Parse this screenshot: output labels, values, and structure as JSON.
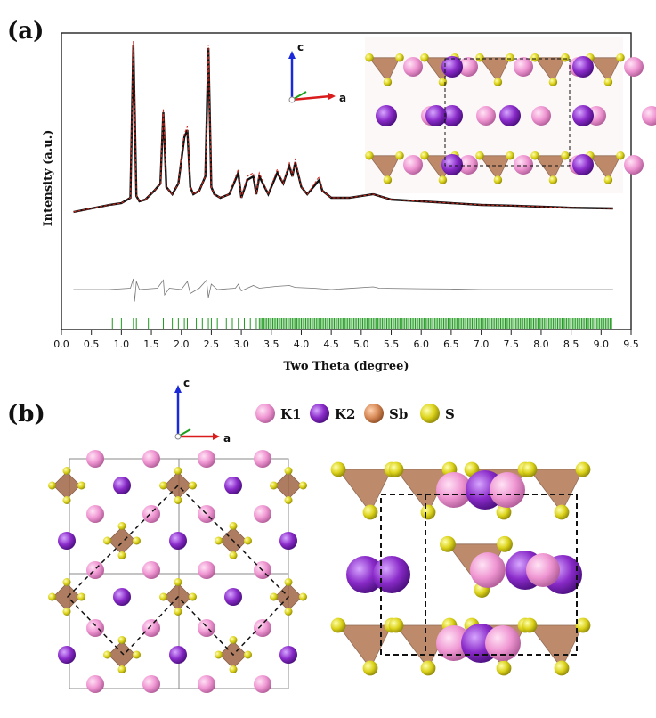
{
  "figure": {
    "panel_a_label": "(a)",
    "panel_b_label": "(b)"
  },
  "chart_data": {
    "type": "line",
    "xlabel": "Two Theta (degree)",
    "ylabel": "Intensity (a.u.)",
    "xlim": [
      0.0,
      9.5
    ],
    "xticks": [
      "0.0",
      "0.5",
      "1.0",
      "1.5",
      "2.0",
      "2.5",
      "3.0",
      "3.5",
      "4.0",
      "4.5",
      "5.0",
      "5.5",
      "6.0",
      "6.5",
      "7.0",
      "7.5",
      "8.0",
      "8.5",
      "9.0",
      "9.5"
    ],
    "series": [
      {
        "role": "observed",
        "color": "#111111",
        "x": [
          0.2,
          0.5,
          0.8,
          1.0,
          1.15,
          1.2,
          1.25,
          1.3,
          1.4,
          1.55,
          1.65,
          1.7,
          1.75,
          1.85,
          1.95,
          2.05,
          2.1,
          2.15,
          2.2,
          2.3,
          2.4,
          2.45,
          2.5,
          2.55,
          2.65,
          2.8,
          2.95,
          3.0,
          3.1,
          3.2,
          3.25,
          3.3,
          3.45,
          3.6,
          3.7,
          3.8,
          3.85,
          3.9,
          4.0,
          4.1,
          4.3,
          4.35,
          4.5,
          4.8,
          5.2,
          5.5,
          6.0,
          6.5,
          7.0,
          7.5,
          8.0,
          8.5,
          9.2
        ],
        "values": [
          0.5,
          0.6,
          0.7,
          0.75,
          0.9,
          5.2,
          0.95,
          0.8,
          0.85,
          1.1,
          1.3,
          3.3,
          1.2,
          1.0,
          1.3,
          2.6,
          2.8,
          1.2,
          1.0,
          1.1,
          1.5,
          5.1,
          1.2,
          1.0,
          0.9,
          1.0,
          1.6,
          0.9,
          1.4,
          1.5,
          1.0,
          1.5,
          1.0,
          1.6,
          1.3,
          1.8,
          1.5,
          1.9,
          1.2,
          1.0,
          1.4,
          1.1,
          0.9,
          0.9,
          1.0,
          0.85,
          0.8,
          0.75,
          0.7,
          0.68,
          0.65,
          0.62,
          0.6
        ]
      },
      {
        "role": "calculated",
        "color": "#d62a1e",
        "x": [
          0.2,
          0.5,
          0.8,
          1.0,
          1.15,
          1.2,
          1.25,
          1.3,
          1.4,
          1.55,
          1.65,
          1.7,
          1.75,
          1.85,
          1.95,
          2.05,
          2.1,
          2.15,
          2.2,
          2.3,
          2.4,
          2.45,
          2.5,
          2.55,
          2.65,
          2.8,
          2.95,
          3.0,
          3.1,
          3.2,
          3.25,
          3.3,
          3.45,
          3.6,
          3.7,
          3.8,
          3.85,
          3.9,
          4.0,
          4.1,
          4.3,
          4.35,
          4.5,
          4.8,
          5.2,
          5.5,
          6.0,
          6.5,
          7.0,
          7.5,
          8.0,
          8.5,
          9.2
        ],
        "values": [
          0.5,
          0.6,
          0.7,
          0.75,
          0.9,
          5.3,
          0.95,
          0.8,
          0.85,
          1.1,
          1.3,
          3.4,
          1.2,
          1.0,
          1.3,
          2.7,
          2.9,
          1.2,
          1.0,
          1.1,
          1.5,
          5.2,
          1.2,
          1.0,
          0.9,
          1.0,
          1.7,
          0.9,
          1.5,
          1.6,
          1.0,
          1.6,
          1.0,
          1.7,
          1.3,
          1.9,
          1.5,
          2.0,
          1.2,
          1.0,
          1.5,
          1.1,
          0.9,
          0.9,
          1.0,
          0.85,
          0.8,
          0.75,
          0.7,
          0.68,
          0.65,
          0.62,
          0.6
        ]
      },
      {
        "role": "difference",
        "color": "#777777",
        "x": [
          0.2,
          0.8,
          1.15,
          1.2,
          1.22,
          1.25,
          1.3,
          1.6,
          1.7,
          1.72,
          1.8,
          2.0,
          2.1,
          2.15,
          2.3,
          2.42,
          2.45,
          2.5,
          2.6,
          2.9,
          2.95,
          3.0,
          3.2,
          3.3,
          3.6,
          3.8,
          3.9,
          4.2,
          4.5,
          5.2,
          5.3,
          6.0,
          6.5,
          7.0,
          8.0,
          9.2
        ],
        "values": [
          0.0,
          0.0,
          0.05,
          0.4,
          -0.45,
          0.3,
          0.0,
          0.05,
          0.35,
          -0.2,
          0.05,
          0.0,
          0.3,
          -0.15,
          0.05,
          0.35,
          -0.3,
          0.2,
          0.0,
          0.05,
          0.2,
          -0.05,
          0.15,
          0.05,
          0.12,
          0.15,
          0.08,
          0.05,
          0.0,
          0.1,
          0.05,
          0.03,
          0.02,
          0.0,
          0.0,
          0.0
        ]
      }
    ],
    "bragg_ticks": {
      "color": "#1f9a1f",
      "sparse": [
        0.85,
        1.0,
        1.2,
        1.25,
        1.45,
        1.7,
        1.85,
        1.95,
        2.05,
        2.1,
        2.25,
        2.35,
        2.45,
        2.5,
        2.6,
        2.75,
        2.85,
        2.95,
        3.05,
        3.15,
        3.25
      ],
      "dense_from": 3.3,
      "dense_to": 9.2
    }
  },
  "structure": {
    "triad_top": {
      "c_label": "c",
      "a_label": "a"
    },
    "triad_bottom": {
      "c_label": "c",
      "a_label": "a"
    },
    "legend": [
      {
        "label": "K1",
        "color": "#ee8fd0"
      },
      {
        "label": "K2",
        "color": "#8a2bc9"
      },
      {
        "label": "Sb",
        "color": "#d88a57"
      },
      {
        "label": "S",
        "color": "#dcd31a"
      }
    ]
  }
}
